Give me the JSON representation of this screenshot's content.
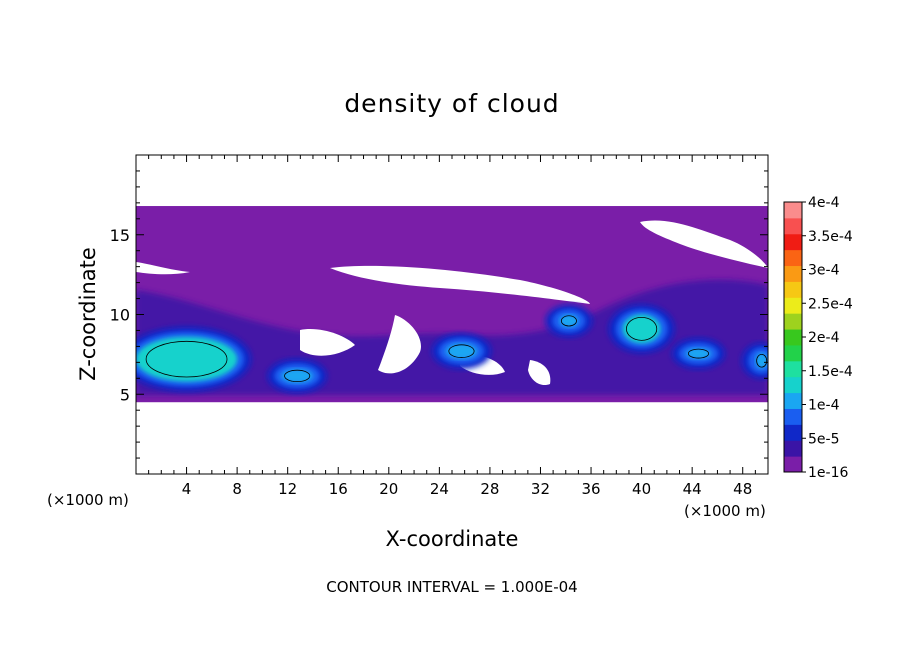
{
  "chart_data": {
    "type": "heatmap",
    "title": "density of cloud",
    "xlabel": "X-coordinate",
    "ylabel": "Z-coordinate",
    "x_unit": "(×1000 m)",
    "y_unit": "(×1000 m)",
    "xlim": [
      0,
      50
    ],
    "ylim": [
      0,
      20
    ],
    "x_ticks": [
      4,
      8,
      12,
      16,
      20,
      24,
      28,
      32,
      36,
      40,
      44,
      48
    ],
    "y_ticks": [
      5,
      10,
      15
    ],
    "colorbar": {
      "labels": [
        "1e-16",
        "5e-5",
        "1e-4",
        "1.5e-4",
        "2e-4",
        "2.5e-4",
        "3e-4",
        "3.5e-4",
        "4e-4"
      ],
      "colors": [
        "#7a1ea8",
        "#3a14a6",
        "#1028c8",
        "#1a5ef0",
        "#1aa6f2",
        "#16d2cc",
        "#1ee0a0",
        "#22d24a",
        "#38c81e",
        "#9ed21e",
        "#ecec1a",
        "#f6c814",
        "#fa9a14",
        "#fa6414",
        "#f01c14",
        "#f85050",
        "#fa8c8c"
      ]
    },
    "cloud_layer_z_range": [
      4.5,
      16.8
    ],
    "high_density_cells": [
      {
        "x": [
          0,
          8
        ],
        "z": [
          5.8,
          8.6
        ],
        "value": 0.00015
      },
      {
        "x": [
          11.5,
          14
        ],
        "z": [
          5.7,
          6.6
        ],
        "value": 0.0001
      },
      {
        "x": [
          24.5,
          27
        ],
        "z": [
          7.2,
          8.2
        ],
        "value": 0.0001
      },
      {
        "x": [
          33.5,
          35
        ],
        "z": [
          9.2,
          10.0
        ],
        "value": 0.0001
      },
      {
        "x": [
          38.5,
          41.5
        ],
        "z": [
          8.2,
          10.0
        ],
        "value": 0.00015
      },
      {
        "x": [
          43.5,
          45.5
        ],
        "z": [
          7.2,
          7.9
        ],
        "value": 0.0001
      },
      {
        "x": [
          49,
          50
        ],
        "z": [
          6.6,
          7.6
        ],
        "value": 0.0001
      }
    ]
  },
  "footer": {
    "contour_interval": "CONTOUR INTERVAL = 1.000E-04"
  }
}
